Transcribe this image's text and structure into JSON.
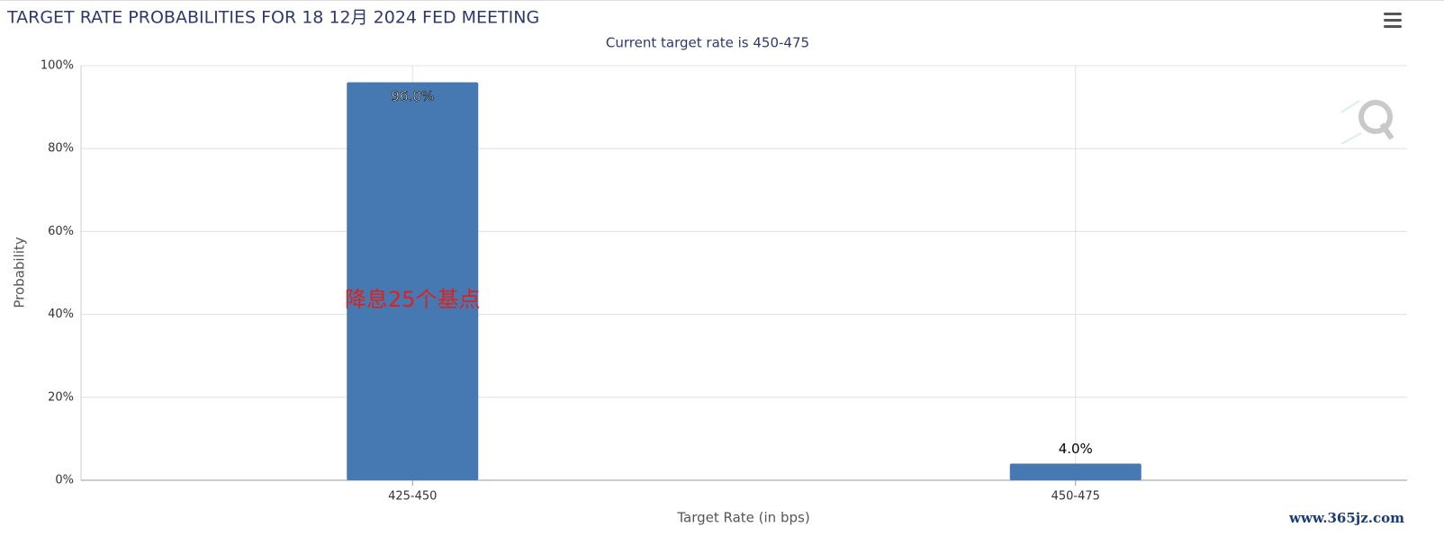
{
  "chart_data": {
    "type": "bar",
    "title": "TARGET RATE PROBABILITIES FOR 18 12月 2024 FED MEETING",
    "subtitle": "Current target rate is 450-475",
    "x_label": "Target Rate (in bps)",
    "y_label": "Probability",
    "categories": [
      "425-450",
      "450-475"
    ],
    "values": [
      96.0,
      4.0
    ],
    "value_labels": [
      "96.0%",
      "4.0%"
    ],
    "color": "#4679b2",
    "ylim": [
      0,
      100
    ],
    "yticks": [
      {
        "value": 0,
        "label": "0%"
      },
      {
        "value": 20,
        "label": "20%"
      },
      {
        "value": 40,
        "label": "40%"
      },
      {
        "value": 60,
        "label": "60%"
      },
      {
        "value": 80,
        "label": "80%"
      },
      {
        "value": 100,
        "label": "100%"
      }
    ],
    "grid": true,
    "annotation": "降息25个基点",
    "watermark": "www.365jz.com"
  }
}
